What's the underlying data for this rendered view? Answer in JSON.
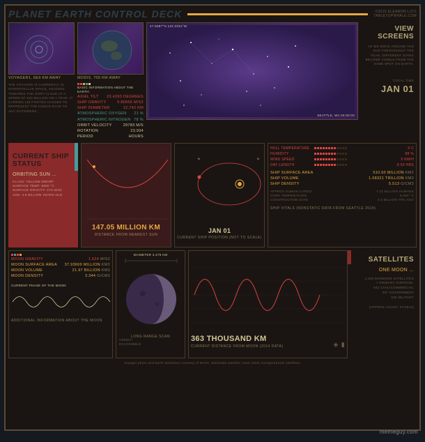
{
  "header": {
    "title": "PLANET EARTH CONTROL DECK",
    "credit1": "©2015 ELEANOR LUTZ",
    "credit2": "TABLETOPWHALE.COM",
    "title_color": "#2d3e4a",
    "accent_color": "#e4a843"
  },
  "row1": {
    "voyager": {
      "label": "VOYAGER1, 6e9 KM AWAY",
      "desc": "THE VOYAGER IS CURRENTLY IN INTERSTELLAR SPACE, HEADING TOWARDS THE OORT CLOUD AT A SPEED OF 540 MILLION KM A YEAR. IT CARRIES 115 PHOTOS CHOSEN TO REPRESENT THE HUMAN RACE TO ANY OUTSIDERS."
    },
    "modis": {
      "label": "MODIS, 700 KM AWAY"
    },
    "starfield": {
      "coords": "47.6097°N 122.3331°W",
      "location": "SEATTLE, WA 00:00:00"
    },
    "viewscreens": {
      "title": "VIEW SCREENS",
      "desc": "AS WE MOVE AROUND THE SUN THROUGHOUT THE YEAR, DIFFERENT STARS BECOME VISIBLE FROM THE SAME SPOT ON EARTH.",
      "localtime_label": "\"LOCAL TIME",
      "date": "JAN 01"
    },
    "earth_stats": {
      "header": "BASIC INFORMATION ABOUT THE EARTH:",
      "items": [
        {
          "label": "AXIAL TILT",
          "val": "23.4393 DEGREES",
          "color": "#d44"
        },
        {
          "label": "SHIP GRAVITY",
          "val": "9.80665 M/S2",
          "color": "#d44"
        },
        {
          "label": "SHIP DIAMETER",
          "val": "12,742 KM",
          "color": "#d44"
        },
        {
          "label": "ATMOSPHERIC OXYGEN",
          "val": "21 %",
          "color": "#4a9a9a"
        },
        {
          "label": "ATMOSPHERIC NITROGEN",
          "val": "78 %",
          "color": "#4a9a9a"
        },
        {
          "label": "ORBIT VELOCITY",
          "val": "29783 M/S",
          "color": "#d4c89a"
        },
        {
          "label": "ROTATION PERIOD",
          "val": "23.934 HOURS",
          "color": "#d4c89a"
        }
      ]
    }
  },
  "row2": {
    "status": {
      "title": "CURRENT SHIP STATUS",
      "sub": "ORBITING SUN ...",
      "details": "CLASS: YELLOW DWARF\nSURFACE TEMP: 5500 °C\nSURFACE GRAVITY: 274 M/S2\nAGE: 4.6 BILLION YEARS OLD",
      "bg": "#8a2a2a"
    },
    "distance": {
      "value": "147.05 MILLION KM",
      "label": "DISTANCE FROM NEAREST SUN",
      "bg": "#3a1a1a"
    },
    "position": {
      "date": "JAN 01",
      "label": "CURRENT SHIP POSITION (NOT TO SCALE)"
    },
    "vitals": {
      "header": "SHIP VITALS (NONSTATIC DATA FROM SEATTLE 2014)",
      "top": [
        {
          "label": "HULL TEMPERATURE",
          "val": "6 C",
          "color": "#d44"
        },
        {
          "label": "HUMIDITY",
          "val": "88 %",
          "color": "#d44"
        },
        {
          "label": "WIND SPEED",
          "val": "5 KM/H",
          "color": "#d44"
        },
        {
          "label": "DAY LENGTH",
          "val": "8.53 HRS",
          "color": "#d44"
        }
      ],
      "mid": [
        {
          "label": "SHIP SURFACE AREA",
          "val": "510.60 MILLION",
          "unit": "KM2",
          "color": "#e4a843"
        },
        {
          "label": "SHIP VOLUME",
          "val": "1.08321 TRILLION",
          "unit": "KM3",
          "color": "#e4a843"
        },
        {
          "label": "SHIP DENSITY",
          "val": "5.513",
          "unit": "G/CM3",
          "color": "#e4a843"
        }
      ],
      "bottom": [
        {
          "label": "APPROX HUMAN CARGO",
          "val": "7.22 BILLION",
          "unit": "HUMANS"
        },
        {
          "label": "CORE TEMPERATURE",
          "val": "6,000",
          "unit": "°C"
        },
        {
          "label": "CONSTRUCTION DATE",
          "val": "4.5 BILLION",
          "unit": "YRS AGO"
        }
      ]
    }
  },
  "row3": {
    "moon_stats": {
      "items": [
        {
          "label": "MOON GRAVITY",
          "val": "1.624",
          "unit": "M/S2",
          "color": "#d44"
        },
        {
          "label": "MOON SURFACE AREA",
          "val": "37.93669 MILLION",
          "unit": "KM2",
          "color": "#e4a843"
        },
        {
          "label": "MOON VOLUME",
          "val": "21.97 BILLION",
          "unit": "KM3",
          "color": "#e4a843"
        },
        {
          "label": "MOON DENSITY",
          "val": "3.344",
          "unit": "G/CM3",
          "color": "#e4a843"
        }
      ],
      "phase_label": "CURRENT PHASE OF THE MOON",
      "footer": "ADDITIONAL INFORMATION ABOUT THE MOON"
    },
    "scan": {
      "diameter": "DIAMETER 3,475 KM",
      "credit": "CREDIT:\nESA/HUBBLE",
      "label": "LONG RANGE SCAN"
    },
    "moondist": {
      "value": "363 THOUSAND KM",
      "label": "CURRENT DISTANCE FROM MOON (2014 DATA)"
    },
    "satellites": {
      "title": "SATELLITES",
      "sub": "ONE MOON ...",
      "desc": "1,235 MANMADE SATELLITES\n> PRIMARY PURPOSE:\n542 CIVIL/COMMERCIAL\n357 GOVERNMENT\n336 MILITARY",
      "footer": "(APPROX COUNT, 07/2014)"
    }
  },
  "footer": {
    "credit": "Voyager photo and Earth animation courtesy of NASA. Manmade satellite count omits nonoperational satellites.",
    "watermark": "memeguy.com"
  },
  "colors": {
    "bg": "#1a1512",
    "border": "#5a4a3a",
    "red": "#d44",
    "orange": "#e4a843",
    "teal": "#4a9a9a",
    "cream": "#d4c89a",
    "dark": "#6a5a4a",
    "purple": "#3a1a5a"
  }
}
